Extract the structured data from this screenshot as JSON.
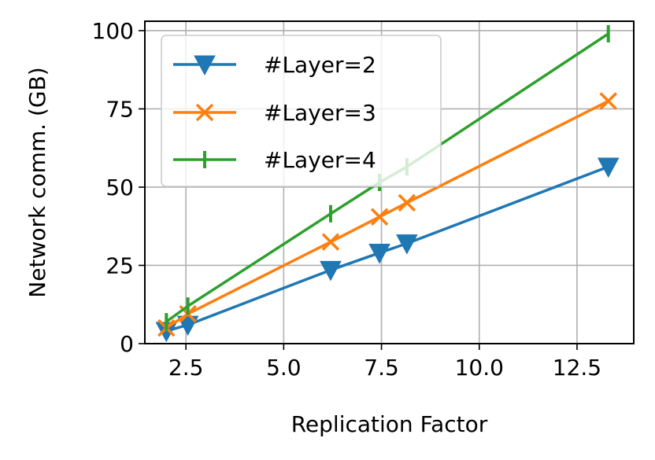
{
  "chart_data": {
    "type": "line",
    "xlabel": "Replication Factor",
    "ylabel": "Network comm. (GB)",
    "xlim": [
      1.45,
      13.95
    ],
    "ylim": [
      0,
      103
    ],
    "xticks": [
      "2.5",
      "5.0",
      "7.5",
      "10.0",
      "12.5"
    ],
    "yticks": [
      "0",
      "25",
      "50",
      "75",
      "100"
    ],
    "grid": true,
    "legend_position": "upper-left",
    "series": [
      {
        "name": "#Layer=2",
        "color": "#1f77b4",
        "marker": "triangle-down",
        "x": [
          2.0,
          2.55,
          6.2,
          7.45,
          8.15,
          13.3
        ],
        "y": [
          4,
          6,
          23.5,
          29,
          32,
          56.5
        ]
      },
      {
        "name": "#Layer=3",
        "color": "#ff7f0e",
        "marker": "x",
        "x": [
          2.0,
          2.55,
          6.2,
          7.45,
          8.15,
          13.3
        ],
        "y": [
          5,
          9.5,
          32.5,
          40.5,
          45,
          77.5
        ]
      },
      {
        "name": "#Layer=4",
        "color": "#2ca02c",
        "marker": "vline",
        "x": [
          2.0,
          2.55,
          6.2,
          7.45,
          8.15,
          13.3
        ],
        "y": [
          7,
          12,
          41.5,
          51.5,
          56.5,
          99
        ]
      }
    ]
  }
}
